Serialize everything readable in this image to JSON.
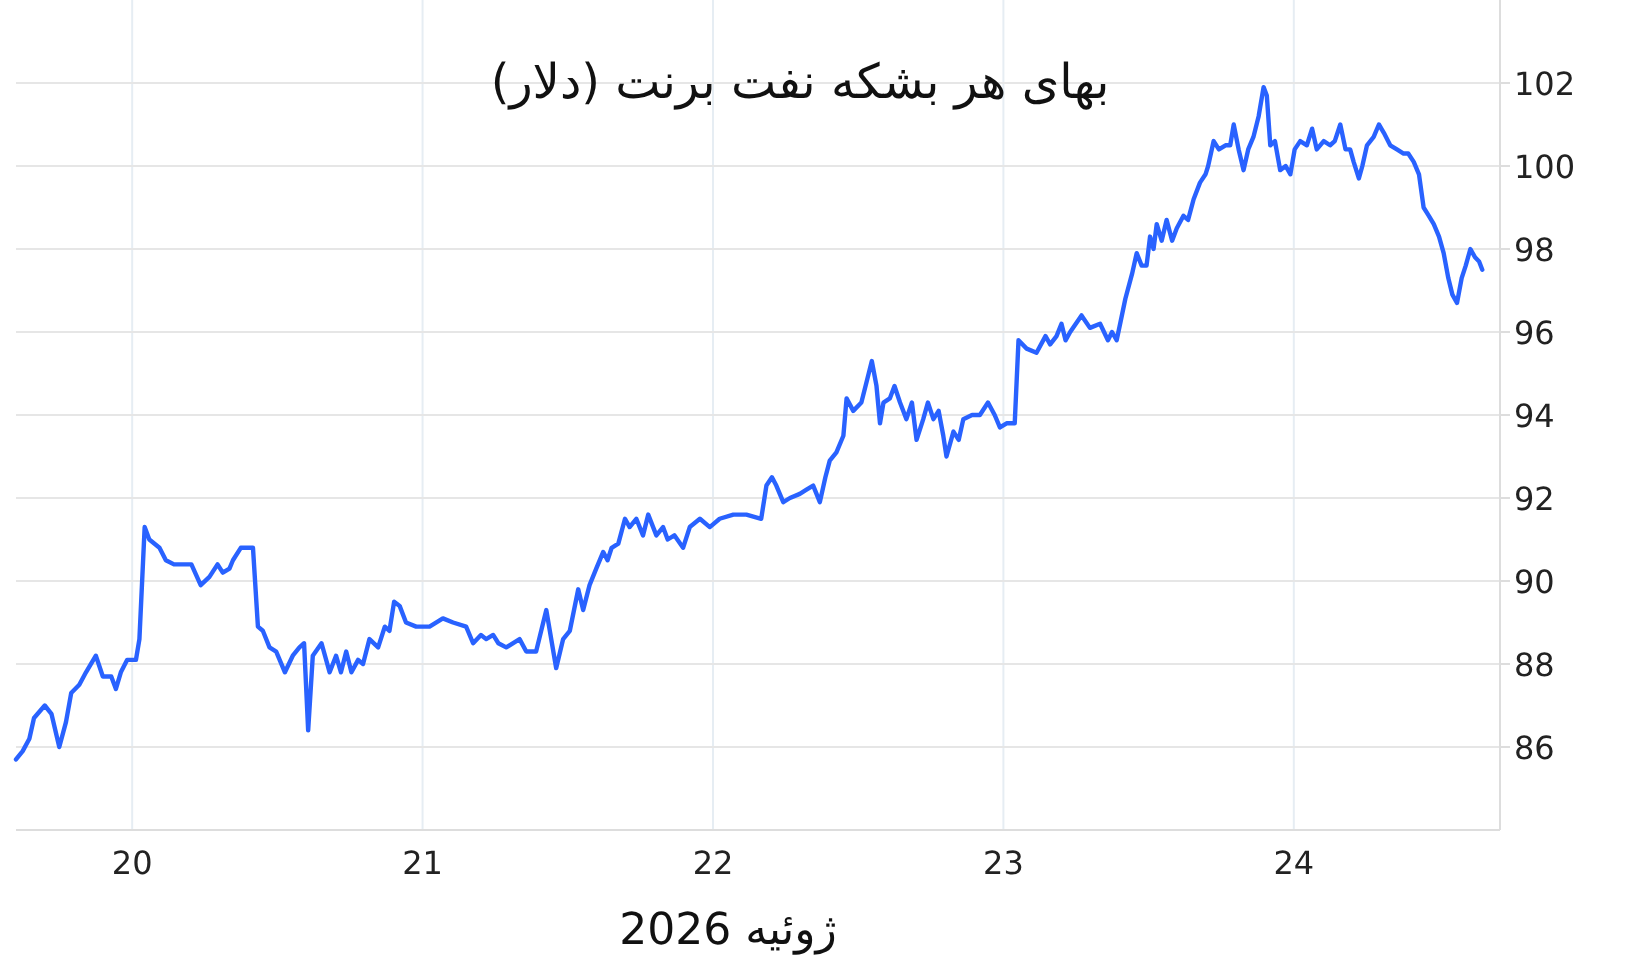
{
  "chart_data": {
    "type": "line",
    "title": "بهای هر بشکه نفت برنت (دلار)",
    "xlabel": "ژوئیه 2026",
    "x": [
      19.6,
      19.623,
      19.646,
      19.662,
      19.699,
      19.722,
      19.749,
      19.772,
      19.79,
      19.818,
      19.841,
      19.875,
      19.899,
      19.928,
      19.944,
      19.961,
      19.983,
      20.013,
      20.025,
      20.043,
      20.059,
      20.094,
      20.116,
      20.144,
      20.185,
      20.204,
      20.236,
      20.266,
      20.294,
      20.312,
      20.335,
      20.347,
      20.374,
      20.416,
      20.433,
      20.45,
      20.473,
      20.496,
      20.526,
      20.553,
      20.576,
      20.592,
      20.606,
      20.622,
      20.652,
      20.68,
      20.702,
      20.719,
      20.737,
      20.755,
      20.778,
      20.795,
      20.817,
      20.847,
      20.87,
      20.886,
      20.902,
      20.921,
      20.943,
      20.978,
      21.024,
      21.07,
      21.105,
      21.15,
      21.174,
      21.201,
      21.219,
      21.243,
      21.261,
      21.288,
      21.334,
      21.357,
      21.391,
      21.426,
      21.46,
      21.484,
      21.507,
      21.536,
      21.553,
      21.575,
      21.598,
      21.622,
      21.637,
      21.651,
      21.674,
      21.697,
      21.713,
      21.736,
      21.759,
      21.777,
      21.805,
      21.828,
      21.844,
      21.867,
      21.897,
      21.92,
      21.955,
      21.989,
      22.023,
      22.07,
      22.115,
      22.166,
      22.184,
      22.203,
      22.218,
      22.242,
      22.265,
      22.299,
      22.322,
      22.345,
      22.368,
      22.387,
      22.402,
      22.425,
      22.449,
      22.46,
      22.483,
      22.511,
      22.529,
      22.547,
      22.563,
      22.575,
      22.587,
      22.609,
      22.625,
      22.644,
      22.666,
      22.685,
      22.701,
      22.724,
      22.74,
      22.759,
      22.777,
      22.793,
      22.804,
      22.828,
      22.846,
      22.862,
      22.892,
      22.919,
      22.947,
      22.97,
      22.988,
      23.011,
      23.039,
      23.052,
      23.08,
      23.114,
      23.145,
      23.161,
      23.183,
      23.2,
      23.214,
      23.23,
      23.269,
      23.298,
      23.333,
      23.36,
      23.374,
      23.39,
      23.402,
      23.42,
      23.443,
      23.459,
      23.476,
      23.493,
      23.505,
      23.517,
      23.528,
      23.545,
      23.562,
      23.581,
      23.597,
      23.62,
      23.636,
      23.655,
      23.677,
      23.696,
      23.705,
      23.724,
      23.742,
      23.765,
      23.781,
      23.793,
      23.81,
      23.827,
      23.843,
      23.861,
      23.879,
      23.896,
      23.907,
      23.919,
      23.935,
      23.953,
      23.972,
      23.988,
      24.003,
      24.022,
      24.045,
      24.063,
      24.079,
      24.103,
      24.125,
      24.141,
      24.16,
      24.178,
      24.194,
      24.206,
      24.224,
      24.236,
      24.252,
      24.275,
      24.293,
      24.31,
      24.332,
      24.355,
      24.378,
      24.394,
      24.413,
      24.431,
      24.447,
      24.465,
      24.482,
      24.5,
      24.516,
      24.532,
      24.546,
      24.562,
      24.578,
      24.592,
      24.608,
      24.624,
      24.638,
      24.649
    ],
    "series": [
      {
        "color": "#2962ff",
        "values": [
          85.7,
          85.9,
          86.2,
          86.7,
          87.0,
          86.8,
          86.0,
          86.6,
          87.3,
          87.5,
          87.8,
          88.2,
          87.7,
          87.7,
          87.4,
          87.8,
          88.1,
          88.1,
          88.6,
          91.3,
          91.0,
          90.8,
          90.5,
          90.4,
          90.4,
          90.4,
          89.9,
          90.1,
          90.4,
          90.2,
          90.3,
          90.5,
          90.8,
          90.8,
          88.9,
          88.8,
          88.4,
          88.3,
          87.8,
          88.2,
          88.4,
          88.5,
          86.4,
          88.2,
          88.5,
          87.8,
          88.2,
          87.8,
          88.3,
          87.8,
          88.1,
          88.0,
          88.6,
          88.4,
          88.9,
          88.8,
          89.5,
          89.4,
          89.0,
          88.9,
          88.9,
          89.1,
          89.0,
          88.9,
          88.5,
          88.7,
          88.6,
          88.7,
          88.5,
          88.4,
          88.6,
          88.3,
          88.3,
          89.3,
          87.9,
          88.6,
          88.8,
          89.8,
          89.3,
          89.9,
          90.3,
          90.7,
          90.5,
          90.8,
          90.9,
          91.5,
          91.3,
          91.5,
          91.1,
          91.6,
          91.1,
          91.3,
          91.0,
          91.1,
          90.8,
          91.3,
          91.5,
          91.3,
          91.5,
          91.6,
          91.6,
          91.5,
          92.3,
          92.5,
          92.3,
          91.9,
          92.0,
          92.1,
          92.2,
          92.3,
          91.9,
          92.5,
          92.9,
          93.1,
          93.5,
          94.4,
          94.1,
          94.3,
          94.8,
          95.3,
          94.7,
          93.8,
          94.3,
          94.4,
          94.7,
          94.3,
          93.9,
          94.3,
          93.4,
          93.9,
          94.3,
          93.9,
          94.1,
          93.5,
          93.0,
          93.6,
          93.4,
          93.9,
          94.0,
          94.0,
          94.3,
          94.0,
          93.7,
          93.8,
          93.8,
          95.8,
          95.6,
          95.5,
          95.9,
          95.7,
          95.9,
          96.2,
          95.8,
          96.0,
          96.4,
          96.1,
          96.2,
          95.8,
          96.0,
          95.8,
          96.2,
          96.8,
          97.4,
          97.9,
          97.6,
          97.6,
          98.3,
          98.0,
          98.6,
          98.2,
          98.7,
          98.2,
          98.5,
          98.8,
          98.7,
          99.2,
          99.6,
          99.8,
          100.0,
          100.6,
          100.4,
          100.5,
          100.5,
          101.0,
          100.4,
          99.9,
          100.4,
          100.7,
          101.2,
          101.9,
          101.7,
          100.5,
          100.6,
          99.9,
          100.0,
          99.8,
          100.4,
          100.6,
          100.5,
          100.9,
          100.4,
          100.6,
          100.5,
          100.6,
          101.0,
          100.4,
          100.4,
          100.1,
          99.7,
          100.0,
          100.5,
          100.7,
          101.0,
          100.8,
          100.5,
          100.4,
          100.3,
          100.3,
          100.1,
          99.8,
          99.0,
          98.8,
          98.6,
          98.3,
          97.9,
          97.3,
          96.9,
          96.7,
          97.3,
          97.6,
          98.0,
          97.8,
          97.7,
          97.5
        ]
      }
    ],
    "xlim": [
      19.6,
      24.71
    ],
    "ylim": [
      84,
      104
    ],
    "xticks": [
      20,
      21,
      22,
      23,
      24
    ],
    "yticks": [
      86,
      88,
      90,
      92,
      94,
      96,
      98,
      100,
      102
    ],
    "grid": true,
    "marker": "none",
    "line_style": "solid"
  }
}
